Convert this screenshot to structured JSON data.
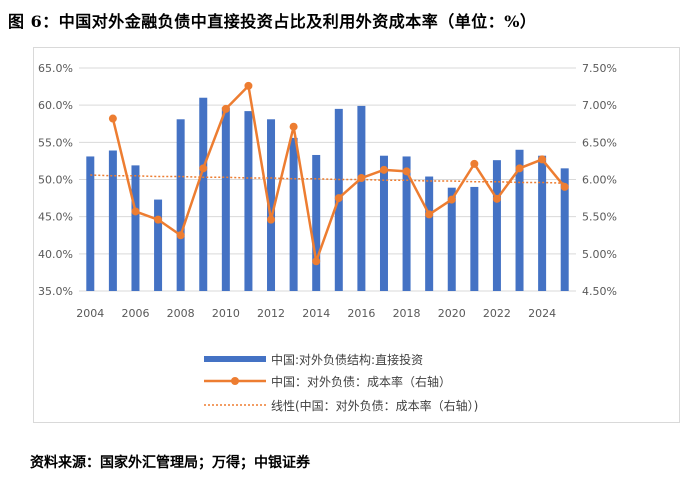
{
  "title": "图 6：中国对外金融负债中直接投资占比及利用外资成本率（单位：%）",
  "source": "资料来源：国家外汇管理局；万得；中银证券",
  "colors": {
    "bar": "#4472c4",
    "line": "#ed7d31",
    "trend": "#ed7d31",
    "grid": "#d9d9d9",
    "axis_text": "#595959"
  },
  "chart_data": {
    "type": "bar",
    "x": [
      2004,
      2005,
      2006,
      2007,
      2008,
      2009,
      2010,
      2011,
      2012,
      2013,
      2014,
      2015,
      2016,
      2017,
      2018,
      2019,
      2020,
      2021,
      2022,
      2023,
      2024,
      2025
    ],
    "x_tick_labels": [
      "2004",
      "2006",
      "2008",
      "2010",
      "2012",
      "2014",
      "2016",
      "2018",
      "2020",
      "2022",
      "2024"
    ],
    "y_left": {
      "ylim": [
        35,
        65
      ],
      "ticks": [
        "35.0%",
        "40.0%",
        "45.0%",
        "50.0%",
        "55.0%",
        "60.0%",
        "65.0%"
      ]
    },
    "y_right": {
      "ylim": [
        4.5,
        7.5
      ],
      "ticks": [
        "4.50%",
        "5.00%",
        "5.50%",
        "6.00%",
        "6.50%",
        "7.00%",
        "7.50%"
      ]
    },
    "grid": true,
    "legend_position": "bottom",
    "series": [
      {
        "name": "中国:对外负债结构:直接投资",
        "type": "bar",
        "axis": "left",
        "values": [
          53.1,
          53.9,
          51.9,
          47.3,
          58.1,
          61.0,
          59.7,
          59.2,
          58.1,
          55.6,
          53.3,
          59.5,
          59.9,
          53.2,
          53.1,
          50.4,
          48.9,
          49.0,
          52.6,
          54.0,
          53.2,
          51.5
        ]
      },
      {
        "name": "中国：对外负债：成本率（右轴）",
        "type": "line",
        "axis": "right",
        "values": [
          null,
          6.82,
          5.57,
          5.46,
          5.25,
          6.15,
          6.95,
          7.26,
          5.46,
          6.71,
          4.9,
          5.75,
          6.02,
          6.13,
          6.11,
          5.53,
          5.73,
          6.21,
          5.74,
          6.15,
          6.27,
          5.9
        ]
      },
      {
        "name": "线性(中国：对外负债：成本率（右轴）)",
        "type": "trend",
        "axis": "right",
        "values": [
          6.06,
          6.05,
          6.05,
          6.04,
          6.04,
          6.03,
          6.03,
          6.02,
          6.02,
          6.01,
          6.01,
          6.0,
          6.0,
          5.99,
          5.99,
          5.98,
          5.98,
          5.97,
          5.97,
          5.96,
          5.96,
          5.95
        ]
      }
    ]
  }
}
